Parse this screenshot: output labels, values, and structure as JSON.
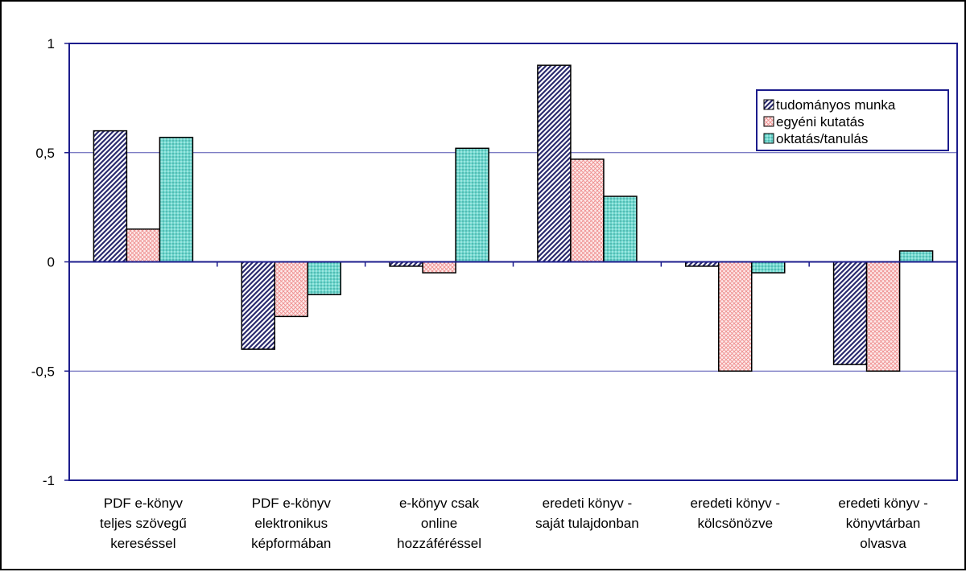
{
  "chart_data": {
    "type": "bar",
    "title": "",
    "xlabel": "",
    "ylabel": "",
    "ylim": [
      -1,
      1
    ],
    "yticks": [
      {
        "value": 1,
        "label": "1"
      },
      {
        "value": 0.5,
        "label": "0,5"
      },
      {
        "value": 0,
        "label": "0"
      },
      {
        "value": -0.5,
        "label": "-0,5"
      },
      {
        "value": -1,
        "label": "-1"
      }
    ],
    "grid": true,
    "legend_position": "top-right",
    "categories": [
      [
        "PDF e-könyv",
        "teljes szövegű",
        "kereséssel"
      ],
      [
        "PDF e-könyv",
        "elektronikus",
        "képformában"
      ],
      [
        "e-könyv csak",
        "online",
        "hozzáféréssel"
      ],
      [
        "eredeti könyv -",
        "saját tulajdonban"
      ],
      [
        "eredeti könyv -",
        "kölcsönözve"
      ],
      [
        "eredeti könyv -",
        "könyvtárban",
        "olvasva"
      ]
    ],
    "series": [
      {
        "name": "tudományos munka",
        "color": "#2b2b6e",
        "values": [
          0.6,
          -0.4,
          -0.02,
          0.9,
          -0.02,
          -0.47
        ]
      },
      {
        "name": "egyéni kutatás",
        "color": "#f2a2a2",
        "values": [
          0.15,
          -0.25,
          -0.05,
          0.47,
          -0.5,
          -0.5
        ]
      },
      {
        "name": "oktatás/tanulás",
        "color": "#5fd3c8",
        "values": [
          0.57,
          -0.15,
          0.52,
          0.3,
          -0.05,
          0.05
        ]
      }
    ],
    "colors": {
      "axis": "#1c1c8c",
      "grid": "#5050b0"
    }
  }
}
